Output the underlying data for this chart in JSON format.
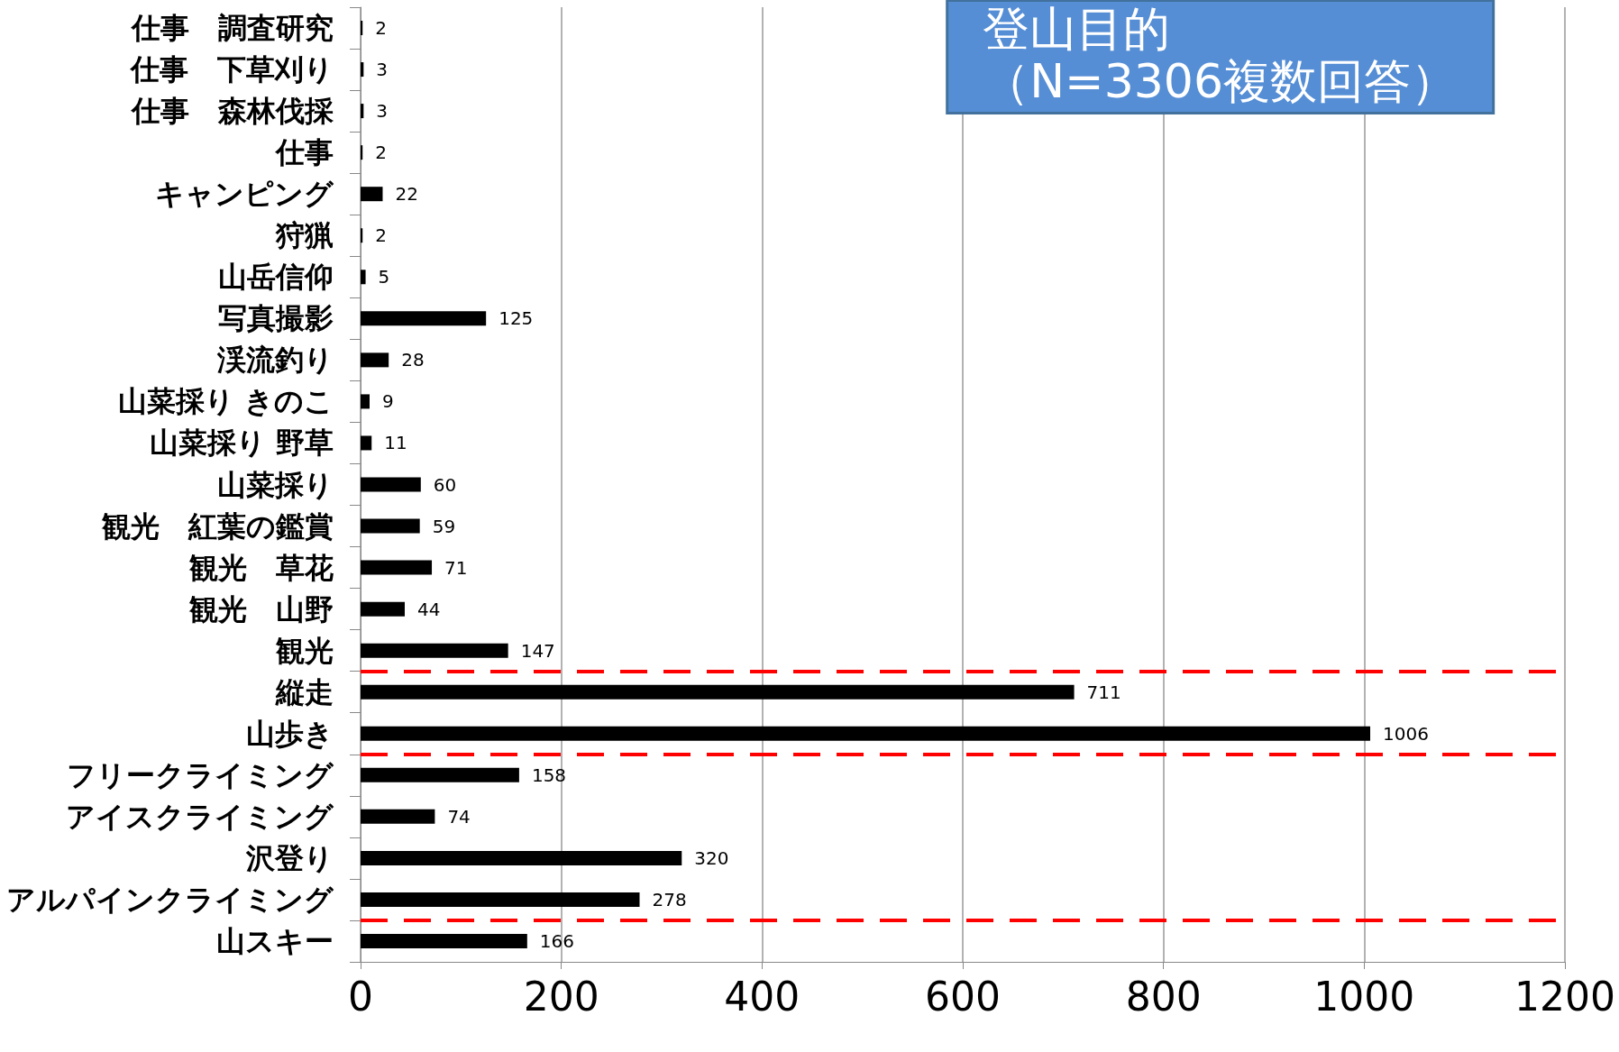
{
  "chart_data": {
    "type": "bar",
    "orientation": "horizontal",
    "title": "登山目的",
    "subtitle": "（N=3306複数回答）",
    "categories": [
      "仕事　調査研究",
      "仕事　下草刈り",
      "仕事　森林伐採",
      "仕事",
      "キャンピング",
      "狩猟",
      "山岳信仰",
      "写真撮影",
      "渓流釣り",
      "山菜採り きのこ",
      "山菜採り 野草",
      "山菜採り",
      "観光　紅葉の鑑賞",
      "観光　草花",
      "観光　山野",
      "観光",
      "縦走",
      "山歩き",
      "フリークライミング",
      "アイスクライミング",
      "沢登り",
      "アルパインクライミング",
      "山スキー"
    ],
    "values": [
      2,
      3,
      3,
      2,
      22,
      2,
      5,
      125,
      28,
      9,
      11,
      60,
      59,
      71,
      44,
      147,
      711,
      1006,
      158,
      74,
      320,
      278,
      166
    ],
    "color": "#000000",
    "data_labels": true,
    "xlim": [
      0,
      1200
    ],
    "xticks": [
      0,
      200,
      400,
      600,
      800,
      1000,
      1200
    ],
    "grid": "x",
    "ref_lines": [
      {
        "axis": "y",
        "value": "観光",
        "color": "#ff0000",
        "line_style": "dashed"
      },
      {
        "axis": "y",
        "value": "山歩き",
        "color": "#ff0000",
        "line_style": "dashed"
      },
      {
        "axis": "y",
        "value": "アルパインクライミング",
        "color": "#ff0000",
        "line_style": "dashed"
      }
    ]
  }
}
